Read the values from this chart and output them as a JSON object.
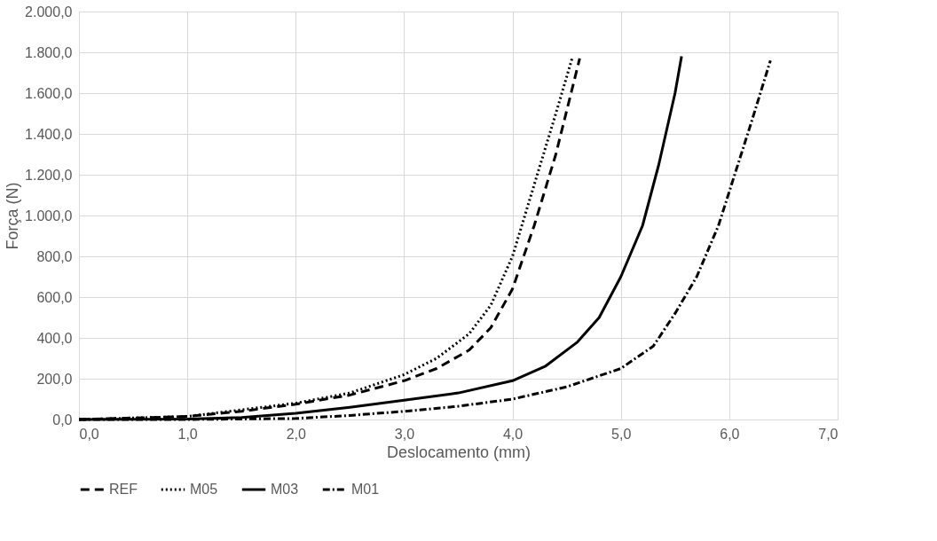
{
  "chart_data": {
    "type": "line",
    "xlabel": "Deslocamento (mm)",
    "ylabel": "Força (N)",
    "xlim": [
      0,
      7
    ],
    "ylim": [
      0,
      2000
    ],
    "xticks": [
      {
        "value": 0,
        "label": "0,0"
      },
      {
        "value": 1,
        "label": "1,0"
      },
      {
        "value": 2,
        "label": "2,0"
      },
      {
        "value": 3,
        "label": "3,0"
      },
      {
        "value": 4,
        "label": "4,0"
      },
      {
        "value": 5,
        "label": "5,0"
      },
      {
        "value": 6,
        "label": "6,0"
      },
      {
        "value": 7,
        "label": "7,0"
      }
    ],
    "yticks": [
      {
        "value": 0,
        "label": "0,0"
      },
      {
        "value": 200,
        "label": "200,0"
      },
      {
        "value": 400,
        "label": "400,0"
      },
      {
        "value": 600,
        "label": "600,0"
      },
      {
        "value": 800,
        "label": "800,0"
      },
      {
        "value": 1000,
        "label": "1.000,0"
      },
      {
        "value": 1200,
        "label": "1.200,0"
      },
      {
        "value": 1400,
        "label": "1.400,0"
      },
      {
        "value": 1600,
        "label": "1.600,0"
      },
      {
        "value": 1800,
        "label": "1.800,0"
      },
      {
        "value": 2000,
        "label": "2.000,0"
      }
    ],
    "grid": true,
    "legend": "bottom",
    "marker": "none",
    "series": [
      {
        "name": "REF",
        "color": "#000000",
        "line_style": "dashed",
        "x": [
          0,
          1,
          1.5,
          2,
          2.5,
          3,
          3.3,
          3.6,
          3.8,
          4.0,
          4.2,
          4.4,
          4.55,
          4.62
        ],
        "values": [
          0,
          15,
          40,
          75,
          120,
          190,
          250,
          340,
          450,
          640,
          950,
          1300,
          1620,
          1770
        ]
      },
      {
        "name": "M05",
        "color": "#000000",
        "line_style": "dotted",
        "x": [
          0,
          1,
          2,
          2.5,
          3,
          3.3,
          3.6,
          3.8,
          4.0,
          4.2,
          4.4,
          4.55
        ],
        "values": [
          0,
          15,
          80,
          130,
          220,
          300,
          420,
          560,
          800,
          1150,
          1500,
          1770
        ]
      },
      {
        "name": "M03",
        "color": "#000000",
        "line_style": "solid",
        "x": [
          0,
          1,
          1.5,
          2,
          2.5,
          3,
          3.5,
          4.0,
          4.3,
          4.6,
          4.8,
          5.0,
          5.2,
          5.35,
          5.5,
          5.56
        ],
        "values": [
          0,
          2,
          10,
          30,
          60,
          95,
          130,
          190,
          260,
          380,
          500,
          700,
          950,
          1250,
          1600,
          1780
        ]
      },
      {
        "name": "M01",
        "color": "#000000",
        "line_style": "dashdot",
        "x": [
          0,
          1,
          2,
          2.5,
          3,
          3.5,
          4,
          4.5,
          5,
          5.3,
          5.5,
          5.7,
          5.9,
          6.05,
          6.2,
          6.38
        ],
        "values": [
          0,
          0,
          5,
          20,
          40,
          65,
          100,
          160,
          250,
          360,
          520,
          700,
          950,
          1200,
          1450,
          1760
        ]
      }
    ]
  }
}
